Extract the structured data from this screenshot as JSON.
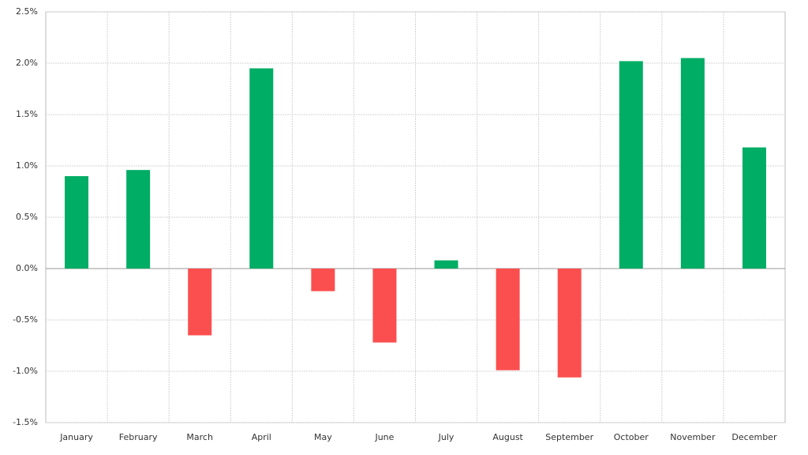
{
  "chart_data": {
    "type": "bar",
    "categories": [
      "January",
      "February",
      "March",
      "April",
      "May",
      "June",
      "July",
      "August",
      "September",
      "October",
      "November",
      "December"
    ],
    "values": [
      0.9,
      0.96,
      -0.65,
      1.95,
      -0.22,
      -0.72,
      0.08,
      -0.99,
      -1.06,
      2.02,
      2.05,
      1.18
    ],
    "positive_color": "#00ad65",
    "negative_color": "#fb4f4f",
    "ylim": [
      -1.5,
      2.5
    ],
    "yticks": [
      {
        "value": -1.5,
        "label": "-1.5%"
      },
      {
        "value": -1.0,
        "label": "-1.0%"
      },
      {
        "value": -0.5,
        "label": "-0.5%"
      },
      {
        "value": 0,
        "label": "0.0%"
      },
      {
        "value": 0.5,
        "label": "0.5%"
      },
      {
        "value": 1.0,
        "label": "1.0%"
      },
      {
        "value": 1.5,
        "label": "1.5%"
      },
      {
        "value": 2.0,
        "label": "2.0%"
      },
      {
        "value": 2.5,
        "label": "2.5%"
      }
    ],
    "grid": true
  }
}
